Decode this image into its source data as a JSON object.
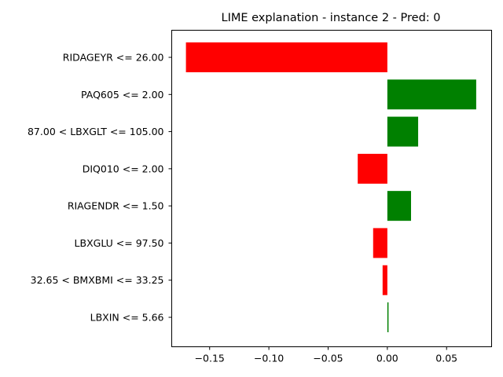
{
  "chart_data": {
    "type": "bar",
    "orientation": "horizontal",
    "title": "LIME explanation - instance 2 - Pred: 0",
    "xlabel": "",
    "ylabel": "",
    "xlim": [
      -0.182,
      0.088
    ],
    "xticks": [
      -0.15,
      -0.1,
      -0.05,
      0.0,
      0.05
    ],
    "xtick_labels": [
      "−0.15",
      "−0.10",
      "−0.05",
      "0.00",
      "0.05"
    ],
    "grid": false,
    "legend": "none",
    "colors": {
      "positive": "#008000",
      "negative": "#ff0000"
    },
    "categories": [
      "RIDAGEYR <= 26.00",
      "PAQ605 <= 2.00",
      "87.00 < LBXGLT <= 105.00",
      "DIQ010 <= 2.00",
      "RIAGENDR <= 1.50",
      "LBXGLU <= 97.50",
      "32.65 < BMXBMI <= 33.25",
      "LBXIN <= 5.66"
    ],
    "values": [
      -0.17,
      0.075,
      0.026,
      -0.025,
      0.02,
      -0.012,
      -0.004,
      0.001
    ]
  }
}
